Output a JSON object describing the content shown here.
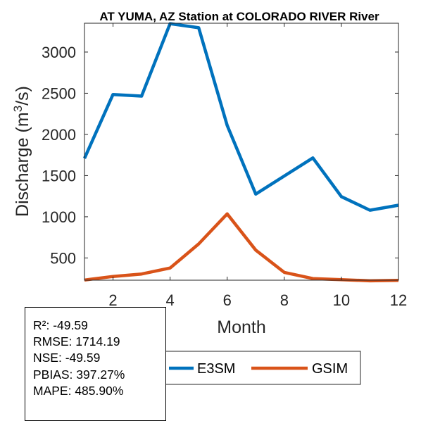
{
  "chart_data": {
    "type": "line",
    "title": "AT YUMA, AZ  Station at  COLORADO RIVER  River",
    "xlabel": "Month",
    "ylabel": "Discharge (m",
    "ylabel_sup": "3",
    "ylabel_tail": "/s)",
    "x": [
      1,
      2,
      3,
      4,
      5,
      6,
      7,
      8,
      9,
      10,
      11,
      12
    ],
    "xlim": [
      1,
      12
    ],
    "ylim": [
      230,
      3350
    ],
    "xticks": [
      2,
      4,
      6,
      8,
      10,
      12
    ],
    "yticks": [
      500,
      1000,
      1500,
      2000,
      2500,
      3000
    ],
    "grid": false,
    "series": [
      {
        "name": "E3SM",
        "color": "#0072BD",
        "values": [
          1710,
          2485,
          2465,
          3345,
          3295,
          2110,
          1275,
          1495,
          1715,
          1245,
          1080,
          1140
        ]
      },
      {
        "name": "GSIM",
        "color": "#D95319",
        "values": [
          232,
          275,
          305,
          378,
          670,
          1035,
          595,
          325,
          250,
          237,
          222,
          228
        ]
      }
    ],
    "legend_position": "bottom",
    "stats": [
      "R²: -49.59",
      "RMSE: 1714.19",
      "NSE: -49.59",
      "PBIAS: 397.27%",
      "MAPE: 485.90%"
    ]
  }
}
